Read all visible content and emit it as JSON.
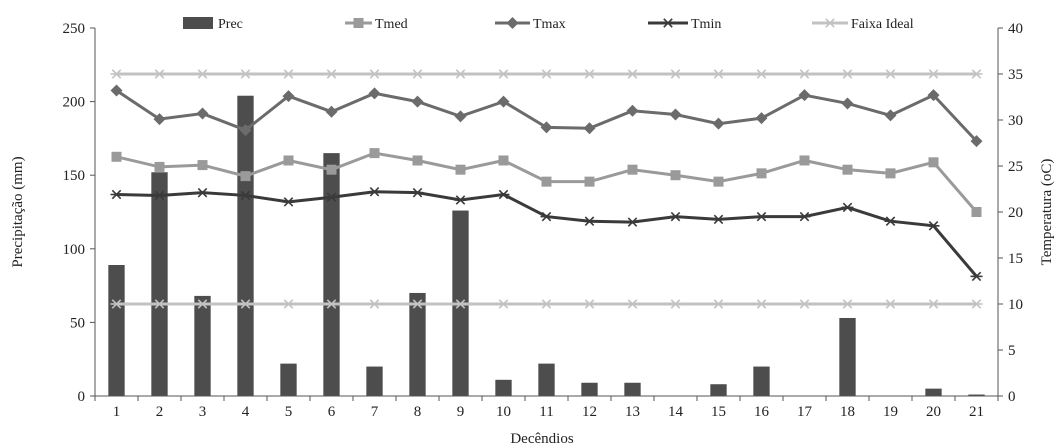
{
  "chart_data": {
    "type": "bar+line",
    "title": "",
    "xlabel": "Decêndios",
    "ylabel_left": "Precipitação (mm)",
    "ylabel_right": "Temperatura (oC)",
    "ylim_left": [
      0,
      250
    ],
    "yticks_left": [
      "0",
      "50",
      "100",
      "150",
      "200",
      "250"
    ],
    "ylim_right": [
      0,
      40
    ],
    "yticks_right": [
      "0",
      "5",
      "10",
      "15",
      "20",
      "25",
      "30",
      "35",
      "40"
    ],
    "categories": [
      "1",
      "2",
      "3",
      "4",
      "5",
      "6",
      "7",
      "8",
      "9",
      "10",
      "11",
      "12",
      "13",
      "14",
      "15",
      "16",
      "17",
      "18",
      "19",
      "20",
      "21"
    ],
    "grid": false,
    "legend_position": "top",
    "bar_series": {
      "name": "Prec",
      "axis": "left",
      "color": "#4d4d4d",
      "values": [
        89,
        152,
        68,
        204,
        22,
        165,
        20,
        70,
        126,
        11,
        22,
        9,
        9,
        0,
        8,
        20,
        0,
        53,
        0,
        5,
        1
      ]
    },
    "line_series": [
      {
        "name": "Tmed",
        "axis": "right",
        "color": "#9a9a9a",
        "marker": "square",
        "values": [
          26.0,
          24.9,
          25.1,
          23.9,
          25.6,
          24.6,
          26.4,
          25.6,
          24.6,
          25.6,
          23.3,
          23.3,
          24.6,
          24.0,
          23.3,
          24.2,
          25.6,
          24.6,
          24.2,
          25.4,
          20.0
        ]
      },
      {
        "name": "Tmax",
        "axis": "right",
        "color": "#6b6b6b",
        "marker": "diamond",
        "values": [
          33.2,
          30.1,
          30.7,
          28.9,
          32.6,
          30.9,
          32.9,
          32.0,
          30.4,
          32.0,
          29.2,
          29.1,
          31.0,
          30.6,
          29.6,
          30.2,
          32.7,
          31.8,
          30.5,
          32.7,
          27.7
        ]
      },
      {
        "name": "Tmin",
        "axis": "right",
        "color": "#3a3a3a",
        "marker": "asterisk",
        "values": [
          21.9,
          21.8,
          22.1,
          21.8,
          21.1,
          21.6,
          22.2,
          22.1,
          21.3,
          21.9,
          19.5,
          19.0,
          18.9,
          19.5,
          19.2,
          19.5,
          19.5,
          20.5,
          19.0,
          18.5,
          13.0
        ]
      },
      {
        "name": "Faixa Ideal",
        "axis": "right",
        "color": "#c2c2c2",
        "marker": "asterisk",
        "values_upper": [
          35,
          35,
          35,
          35,
          35,
          35,
          35,
          35,
          35,
          35,
          35,
          35,
          35,
          35,
          35,
          35,
          35,
          35,
          35,
          35,
          35
        ],
        "values_lower": [
          10,
          10,
          10,
          10,
          10,
          10,
          10,
          10,
          10,
          10,
          10,
          10,
          10,
          10,
          10,
          10,
          10,
          10,
          10,
          10,
          10
        ]
      }
    ]
  }
}
